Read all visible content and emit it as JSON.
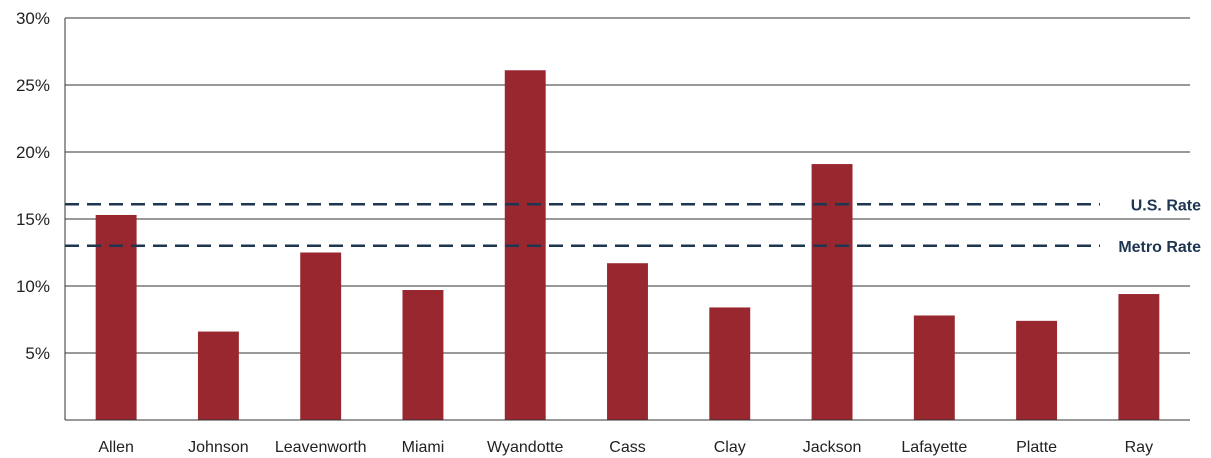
{
  "chart_data": {
    "type": "bar",
    "categories": [
      "Allen",
      "Johnson",
      "Leavenworth",
      "Miami",
      "Wyandotte",
      "Cass",
      "Clay",
      "Jackson",
      "Lafayette",
      "Platte",
      "Ray"
    ],
    "values": [
      15.3,
      6.6,
      12.5,
      9.7,
      26.1,
      11.7,
      8.4,
      19.1,
      7.8,
      7.4,
      9.4
    ],
    "ylim": [
      0,
      30
    ],
    "yticks": [
      5,
      10,
      15,
      20,
      25,
      30
    ],
    "ytick_labels": [
      "5%",
      "10%",
      "15%",
      "20%",
      "25%",
      "30%"
    ],
    "grid": true,
    "bar_color": "#98272f",
    "reference_lines": [
      {
        "label": "U.S. Rate",
        "value": 16.1,
        "color": "#1f3652"
      },
      {
        "label": "Metro Rate",
        "value": 13.0,
        "color": "#1f3652"
      }
    ]
  }
}
